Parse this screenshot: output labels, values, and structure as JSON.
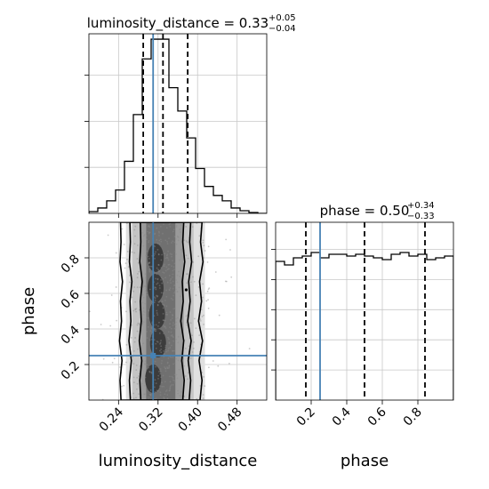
{
  "chart_data": [
    {
      "type": "histogram",
      "panel": "top-left",
      "title": "luminosity_distance = 0.33",
      "title_sup": "+0.05",
      "title_sub": "−0.04",
      "xlim": [
        0.18,
        0.54
      ],
      "ylim": [
        0,
        1.0
      ],
      "grid": true,
      "bin_edges": [
        0.18,
        0.198,
        0.216,
        0.234,
        0.252,
        0.27,
        0.288,
        0.306,
        0.324,
        0.342,
        0.36,
        0.378,
        0.396,
        0.414,
        0.432,
        0.45,
        0.468,
        0.486,
        0.504,
        0.522,
        0.54
      ],
      "counts": [
        0.01,
        0.03,
        0.07,
        0.13,
        0.29,
        0.55,
        0.86,
        0.97,
        0.97,
        0.7,
        0.57,
        0.42,
        0.25,
        0.15,
        0.1,
        0.07,
        0.03,
        0.015,
        0.005,
        0
      ],
      "quantile_lines": [
        0.29,
        0.33,
        0.38
      ],
      "truth": 0.31,
      "yticks_count": 3
    },
    {
      "type": "histogram",
      "panel": "bottom-right",
      "title": "phase = 0.50",
      "title_sup": "+0.34",
      "title_sub": "−0.33",
      "xlim": [
        0,
        1.0
      ],
      "ylim": [
        0,
        1.0
      ],
      "grid": true,
      "xticks": [
        0.2,
        0.4,
        0.6,
        0.8
      ],
      "xlabel": "phase",
      "bin_edges": [
        0,
        0.05,
        0.1,
        0.15,
        0.2,
        0.25,
        0.3,
        0.35,
        0.4,
        0.45,
        0.5,
        0.55,
        0.6,
        0.65,
        0.7,
        0.75,
        0.8,
        0.85,
        0.9,
        0.95,
        1.0
      ],
      "counts": [
        0.78,
        0.76,
        0.8,
        0.81,
        0.83,
        0.8,
        0.82,
        0.82,
        0.81,
        0.82,
        0.81,
        0.8,
        0.79,
        0.82,
        0.83,
        0.81,
        0.82,
        0.79,
        0.8,
        0.81
      ],
      "quantile_lines": [
        0.17,
        0.5,
        0.84
      ],
      "truth": 0.25,
      "yticks_count": 5
    },
    {
      "type": "scatter-contour",
      "panel": "bottom-left",
      "xlim": [
        0.18,
        0.54
      ],
      "ylim": [
        0,
        1.0
      ],
      "grid": true,
      "xticks": [
        0.24,
        0.32,
        0.4,
        0.48
      ],
      "yticks": [
        0.2,
        0.4,
        0.6,
        0.8
      ],
      "xlabel": "luminosity_distance",
      "ylabel": "phase",
      "truth": {
        "x": 0.31,
        "y": 0.25
      },
      "contour_levels": [
        {
          "left": [
            0.285,
            0.283,
            0.287,
            0.282,
            0.286,
            0.284,
            0.288,
            0.283,
            0.285,
            0.284
          ],
          "right": [
            0.37,
            0.373,
            0.368,
            0.372,
            0.366,
            0.371,
            0.369,
            0.374,
            0.37,
            0.372
          ]
        },
        {
          "left": [
            0.264,
            0.262,
            0.266,
            0.261,
            0.265,
            0.263,
            0.267,
            0.262,
            0.264,
            0.263
          ],
          "right": [
            0.383,
            0.386,
            0.381,
            0.387,
            0.38,
            0.385,
            0.382,
            0.388,
            0.384,
            0.386
          ]
        },
        {
          "left": [
            0.245,
            0.243,
            0.247,
            0.242,
            0.246,
            0.244,
            0.248,
            0.243,
            0.245,
            0.244
          ],
          "right": [
            0.405,
            0.409,
            0.403,
            0.41,
            0.402,
            0.408,
            0.404,
            0.411,
            0.406,
            0.409
          ]
        }
      ]
    }
  ]
}
